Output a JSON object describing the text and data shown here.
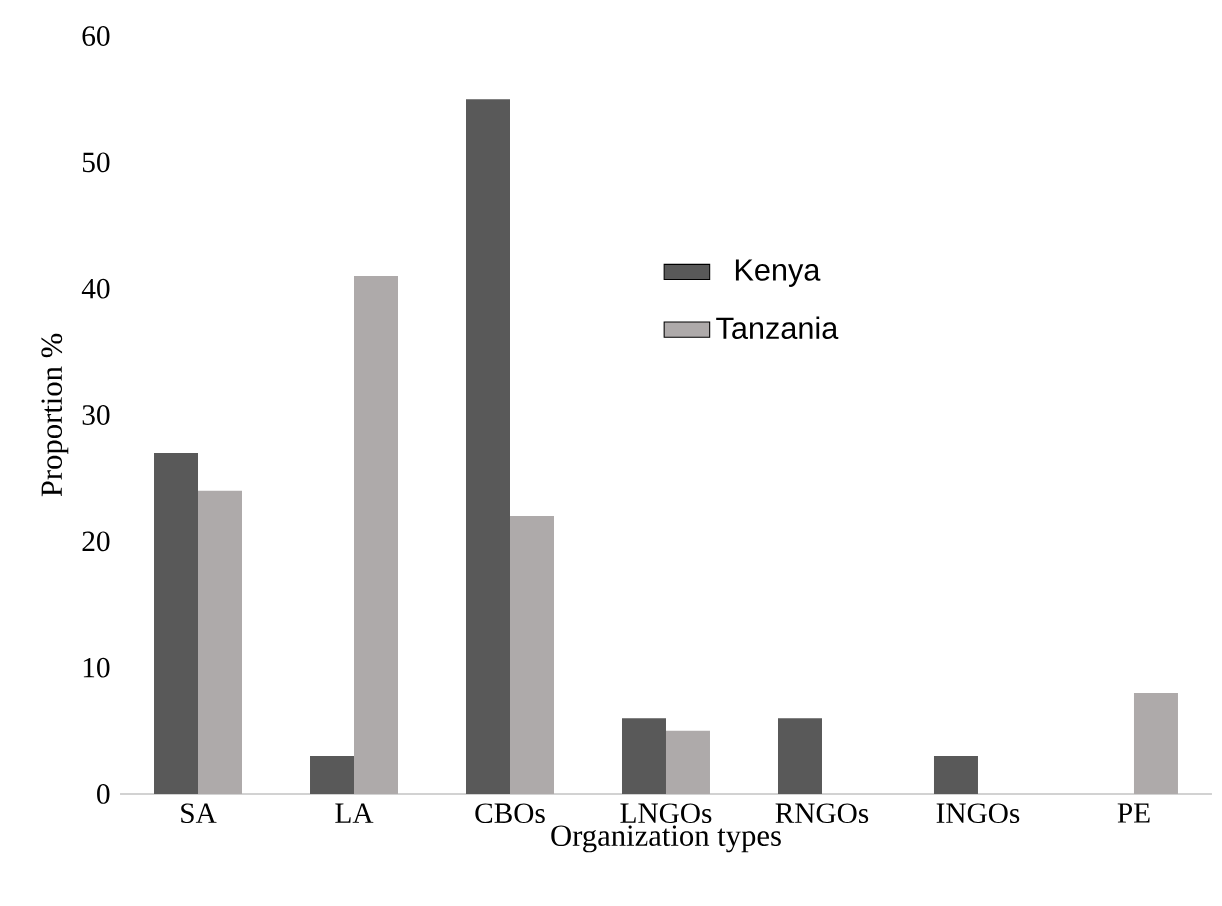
{
  "chart_data": {
    "type": "bar",
    "xlabel": "Organization types",
    "ylabel": "Proportion %",
    "categories": [
      "SA",
      "LA",
      "CBOs",
      "LNGOs",
      "RNGOs",
      "INGOs",
      "PE"
    ],
    "series": [
      {
        "name": "Kenya",
        "color": "#595959",
        "values": [
          27,
          3,
          55,
          6,
          6,
          3,
          0
        ]
      },
      {
        "name": "Tanzania",
        "color": "#aeaaaa",
        "values": [
          24,
          41,
          22,
          5,
          0,
          0,
          8
        ]
      }
    ],
    "ylim": [
      0,
      60
    ],
    "yticks": [
      0,
      10,
      20,
      30,
      40,
      50,
      60
    ],
    "legend": "top"
  }
}
